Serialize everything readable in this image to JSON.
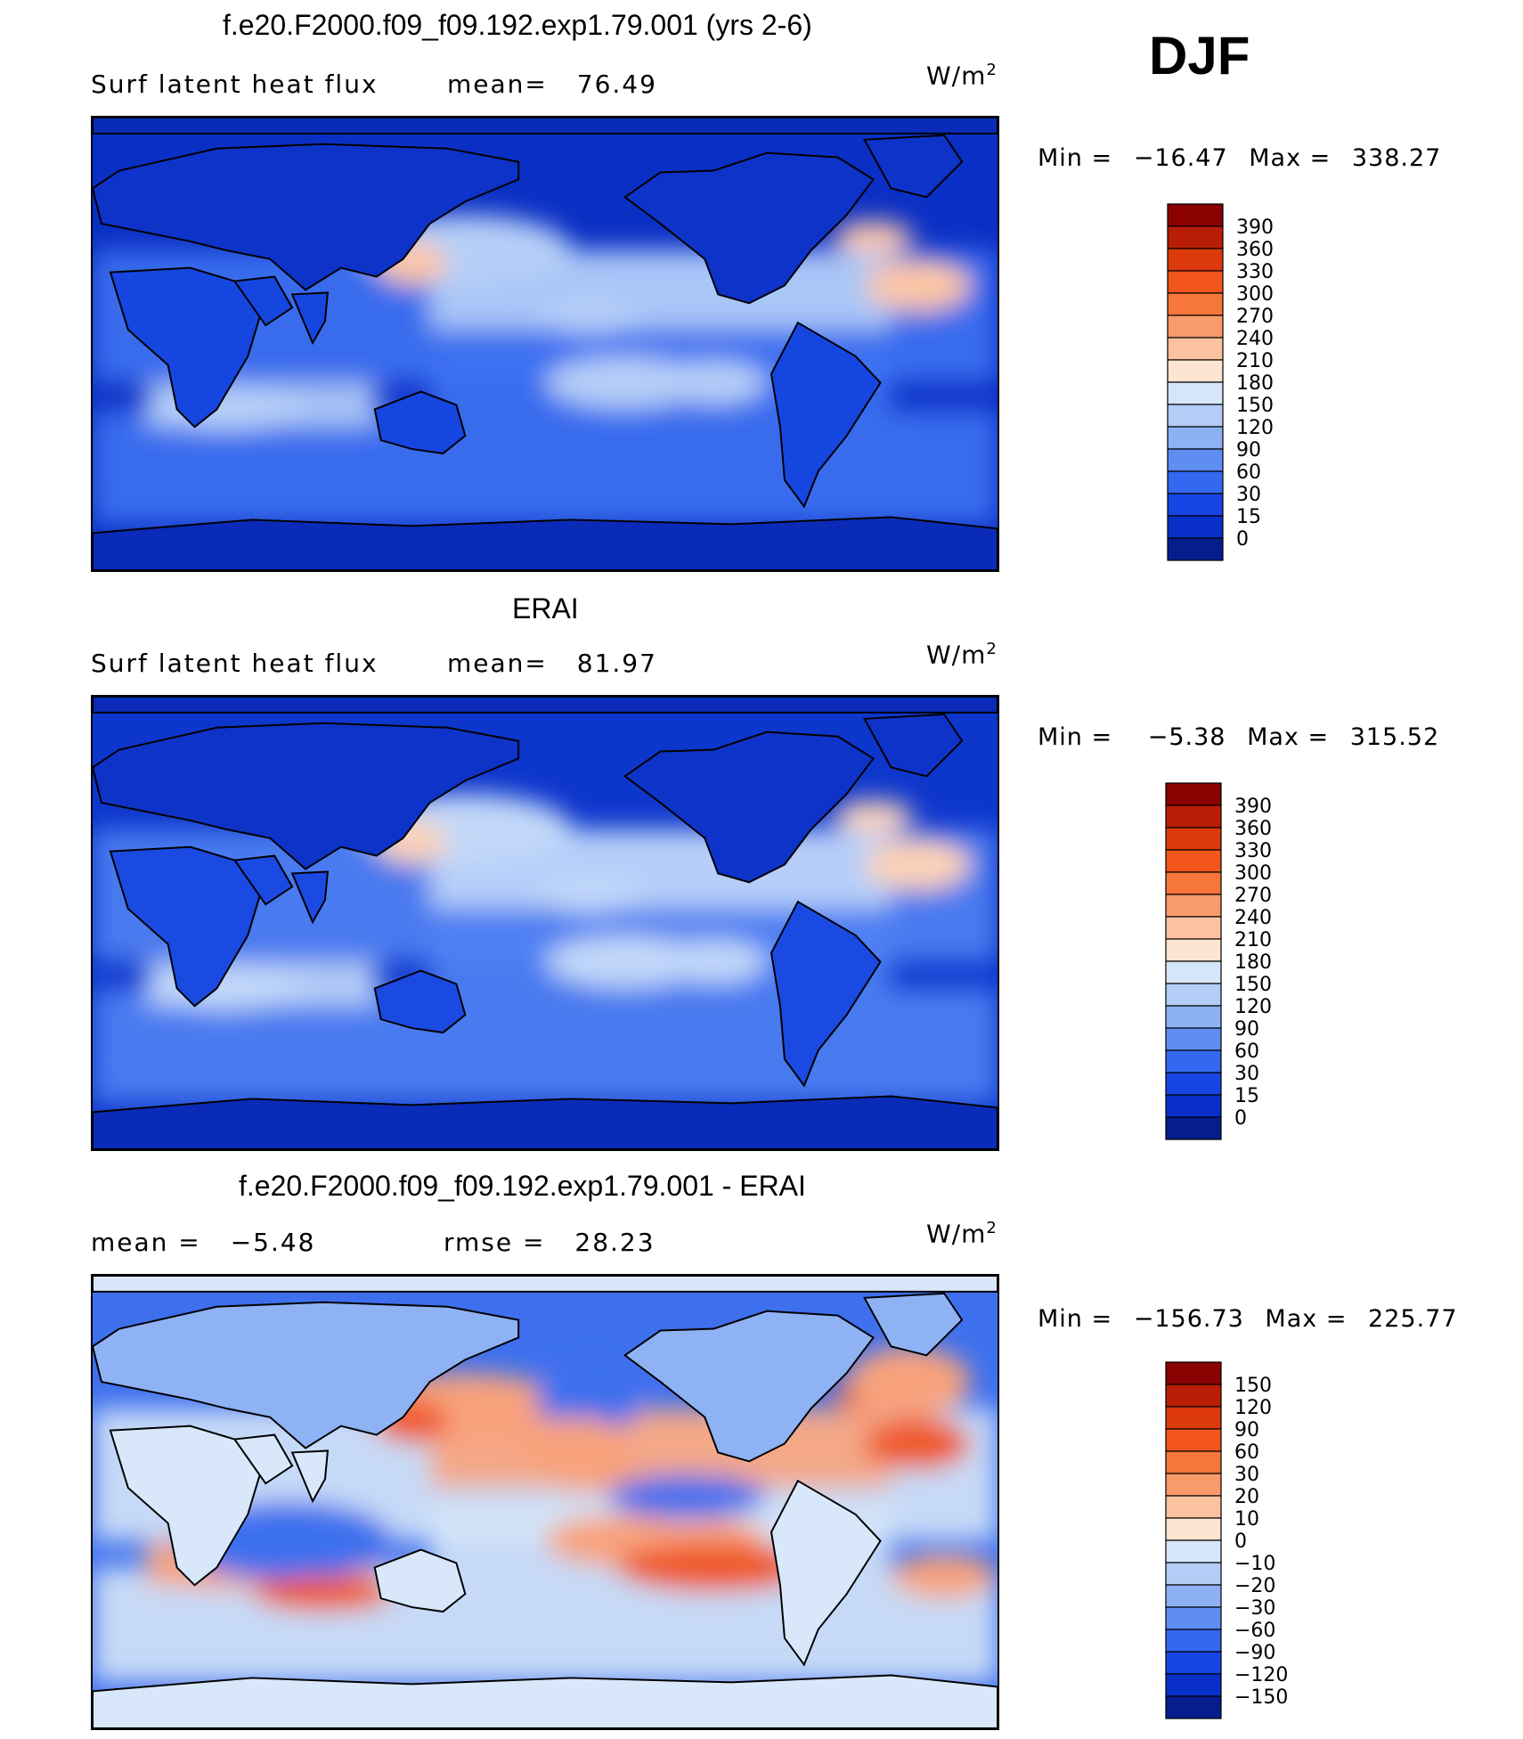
{
  "season": "DJF",
  "unit_base": "W/m",
  "unit_exp": "2",
  "panels": [
    {
      "title": "f.e20.F2000.f09_f09.192.exp1.79.001 (yrs 2-6)",
      "left_label": "Surf latent heat flux",
      "center_label": "mean=",
      "center_value": "76.49",
      "min_label": "Min =",
      "min_value": "−16.47",
      "max_label": "Max =",
      "max_value": "338.27",
      "colorbar_levels": [
        "390",
        "360",
        "330",
        "300",
        "270",
        "240",
        "210",
        "180",
        "150",
        "120",
        "90",
        "60",
        "30",
        "15",
        "0"
      ],
      "colorbar_colors": [
        "#8b0000",
        "#b81d05",
        "#dc3a0c",
        "#f2561c",
        "#f7763a",
        "#f99a6a",
        "#fcc2a0",
        "#fde5d2",
        "#d6e6fa",
        "#b4cdf6",
        "#8eb1f4",
        "#5f8ef3",
        "#3568f0",
        "#1746e5",
        "#0830c9",
        "#061d8e"
      ],
      "map_palette": {
        "ocean_cold": "#0a2fc4",
        "ocean_mid": "#3d72f2",
        "ocean_warm": "#b6cff8",
        "hot": "#fcc6a6",
        "land": "#1646e0",
        "land_dark": "#0e33c8",
        "polar": "#0a2bb8"
      }
    },
    {
      "title": "ERAI",
      "left_label": "Surf latent heat flux",
      "center_label": "mean=",
      "center_value": "81.97",
      "min_label": "Min =",
      "min_value": "−5.38",
      "max_label": "Max =",
      "max_value": "315.52",
      "colorbar_levels": [
        "390",
        "360",
        "330",
        "300",
        "270",
        "240",
        "210",
        "180",
        "150",
        "120",
        "90",
        "60",
        "30",
        "15",
        "0"
      ],
      "colorbar_colors": [
        "#8b0000",
        "#b81d05",
        "#dc3a0c",
        "#f2561c",
        "#f7763a",
        "#f99a6a",
        "#fcc2a0",
        "#fde5d2",
        "#d6e6fa",
        "#b4cdf6",
        "#8eb1f4",
        "#5f8ef3",
        "#3568f0",
        "#1746e5",
        "#0830c9",
        "#061d8e"
      ],
      "map_palette": {
        "ocean_cold": "#0d36cc",
        "ocean_mid": "#4f82f3",
        "ocean_warm": "#c2d8f9",
        "hot": "#fcd2b6",
        "land": "#1a4ae2",
        "land_dark": "#0e33c8",
        "polar": "#0a2bb8"
      }
    },
    {
      "title": "f.e20.F2000.f09_f09.192.exp1.79.001 - ERAI",
      "left_label": "mean =",
      "left_value": "−5.48",
      "center_label": "rmse =",
      "center_value": "28.23",
      "min_label": "Min =",
      "min_value": "−156.73",
      "max_label": "Max =",
      "max_value": "225.77",
      "colorbar_levels": [
        "150",
        "120",
        "90",
        "60",
        "30",
        "20",
        "10",
        "0",
        "−10",
        "−20",
        "−30",
        "−60",
        "−90",
        "−120",
        "−150"
      ],
      "colorbar_colors": [
        "#8b0000",
        "#b81d05",
        "#dc3a0c",
        "#f2561c",
        "#f7763a",
        "#f99a6a",
        "#fcc2a0",
        "#fde5d2",
        "#d6e6fa",
        "#b4cdf6",
        "#8eb1f4",
        "#5f8ef3",
        "#3568f0",
        "#1746e5",
        "#0830c9",
        "#061d8e"
      ],
      "map_palette": {
        "ocean_cold": "#3e70ee",
        "ocean_mid": "#d5e5f8",
        "ocean_warm": "#f8a27c",
        "hot": "#ef5a2a",
        "land": "#d8e7fa",
        "land_dark": "#8fb2f4",
        "polar": "#d8e7fa"
      }
    }
  ],
  "chart_data": {
    "type": "heatmap",
    "season": "DJF",
    "variable": "Surf latent heat flux",
    "unit": "W/m2",
    "panels": [
      {
        "title": "f.e20.F2000.f09_f09.192.exp1.79.001 (yrs 2-6)",
        "mean": 76.49,
        "min": -16.47,
        "max": 338.27,
        "levels": [
          0,
          15,
          30,
          60,
          90,
          120,
          150,
          180,
          210,
          240,
          270,
          300,
          330,
          360,
          390
        ]
      },
      {
        "title": "ERAI",
        "mean": 81.97,
        "min": -5.38,
        "max": 315.52,
        "levels": [
          0,
          15,
          30,
          60,
          90,
          120,
          150,
          180,
          210,
          240,
          270,
          300,
          330,
          360,
          390
        ]
      },
      {
        "title": "f.e20.F2000.f09_f09.192.exp1.79.001 - ERAI",
        "mean": -5.48,
        "rmse": 28.23,
        "min": -156.73,
        "max": 225.77,
        "levels": [
          -150,
          -120,
          -90,
          -60,
          -30,
          -20,
          -10,
          0,
          10,
          20,
          30,
          60,
          90,
          120,
          150
        ]
      }
    ]
  }
}
